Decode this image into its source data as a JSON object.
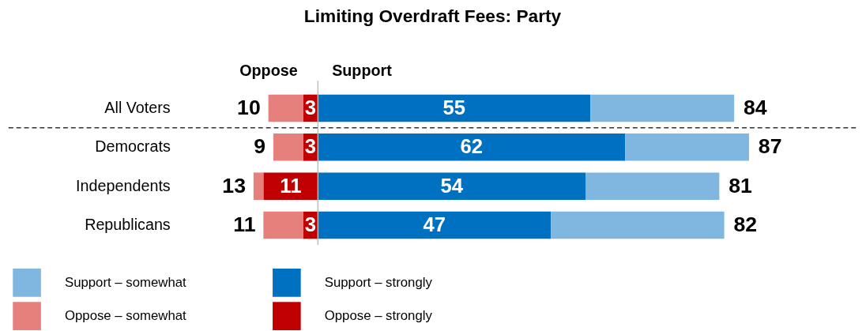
{
  "chart_data": {
    "type": "bar",
    "orientation": "horizontal",
    "stacked": true,
    "title": "Limiting Overdraft Fees: Party",
    "categories": [
      "All Voters",
      "Democrats",
      "Independents",
      "Republicans"
    ],
    "series": [
      {
        "name": "Oppose – strongly",
        "color": "#c00000",
        "values": [
          -3,
          -3,
          -11,
          -3
        ]
      },
      {
        "name": "Oppose – somewhat",
        "color": "#e6807c",
        "values": [
          -7,
          -6,
          -2,
          -8
        ]
      },
      {
        "name": "Support – strongly",
        "color": "#0070c0",
        "values": [
          55,
          62,
          54,
          47
        ],
        "value_labels": [
          "55",
          "62",
          "54",
          "47"
        ]
      },
      {
        "name": "Support – somewhat",
        "color": "#80b7e0",
        "values": [
          29,
          25,
          27,
          35
        ]
      }
    ],
    "totals": [
      [
        "10",
        "84"
      ],
      [
        "9",
        "87"
      ],
      [
        "13",
        "81"
      ],
      [
        "11",
        "82"
      ]
    ],
    "annotations": [
      "Oppose",
      "Support",
      "3",
      "3",
      "11",
      "3"
    ],
    "legend": "bottom left"
  }
}
